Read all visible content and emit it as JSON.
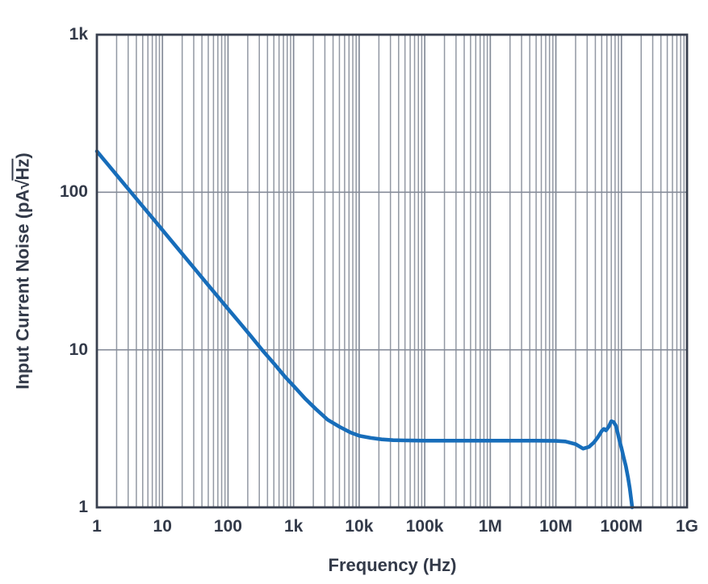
{
  "colors": {
    "curve": "#176dba",
    "grid_minor": "#9298a3",
    "grid_major": "#848b98",
    "frame": "#39404f",
    "text": "#333a49",
    "background": "#ffffff"
  },
  "axis_titles": {
    "x": "Frequency (Hz)",
    "y_prefix": "Input Current Noise (pA",
    "y_sqrt": "√",
    "y_radicand": "Hz",
    "y_suffix": ")"
  },
  "chart_data": {
    "type": "line",
    "title": "",
    "xlabel": "Frequency (Hz)",
    "ylabel": "Input Current Noise (pA√Hz)",
    "x_scale": "log",
    "y_scale": "log",
    "xlim": [
      1,
      1000000000
    ],
    "ylim": [
      1,
      1000
    ],
    "grid": "log minor vertical lines every decade; horizontal lines at decades only",
    "legend": "none",
    "x_ticks": [
      {
        "value": 1,
        "label": "1"
      },
      {
        "value": 10,
        "label": "10"
      },
      {
        "value": 100,
        "label": "100"
      },
      {
        "value": 1000,
        "label": "1k"
      },
      {
        "value": 10000,
        "label": "10k"
      },
      {
        "value": 100000,
        "label": "100k"
      },
      {
        "value": 1000000,
        "label": "1M"
      },
      {
        "value": 10000000,
        "label": "10M"
      },
      {
        "value": 100000000,
        "label": "100M"
      },
      {
        "value": 1000000000,
        "label": "1G"
      }
    ],
    "y_ticks": [
      {
        "value": 1,
        "label": "1"
      },
      {
        "value": 10,
        "label": "10"
      },
      {
        "value": 100,
        "label": "100"
      },
      {
        "value": 1000,
        "label": "1k"
      }
    ],
    "series": [
      {
        "name": "input-current-noise",
        "color": "#176dba",
        "points": [
          [
            1,
            182
          ],
          [
            1.5,
            148.6
          ],
          [
            2.2,
            122.7
          ],
          [
            3.3,
            100.2
          ],
          [
            5,
            81.4
          ],
          [
            7.5,
            66.5
          ],
          [
            10,
            57.6
          ],
          [
            15,
            47.0
          ],
          [
            22,
            38.8
          ],
          [
            33,
            31.7
          ],
          [
            50,
            25.7
          ],
          [
            75,
            21.0
          ],
          [
            100,
            18.2
          ],
          [
            150,
            14.9
          ],
          [
            220,
            12.3
          ],
          [
            330,
            10.0
          ],
          [
            500,
            8.2
          ],
          [
            750,
            6.7
          ],
          [
            1000,
            5.9
          ],
          [
            1500,
            4.9
          ],
          [
            2200,
            4.2
          ],
          [
            3300,
            3.6
          ],
          [
            5000,
            3.25
          ],
          [
            7500,
            2.98
          ],
          [
            10000,
            2.85
          ],
          [
            15000,
            2.76
          ],
          [
            22000,
            2.7
          ],
          [
            33000,
            2.67
          ],
          [
            50000,
            2.66
          ],
          [
            100000,
            2.65
          ],
          [
            220000,
            2.65
          ],
          [
            500000,
            2.65
          ],
          [
            1000000,
            2.65
          ],
          [
            2200000,
            2.65
          ],
          [
            5000000,
            2.65
          ],
          [
            10000000,
            2.64
          ],
          [
            14000000,
            2.62
          ],
          [
            20000000,
            2.52
          ],
          [
            26000000,
            2.36
          ],
          [
            32000000,
            2.42
          ],
          [
            38000000,
            2.58
          ],
          [
            44000000,
            2.8
          ],
          [
            50000000,
            3.05
          ],
          [
            54000000,
            3.15
          ],
          [
            58000000,
            3.08
          ],
          [
            64000000,
            3.25
          ],
          [
            70000000,
            3.52
          ],
          [
            76000000,
            3.48
          ],
          [
            82000000,
            3.3
          ],
          [
            88000000,
            2.95
          ],
          [
            94000000,
            2.62
          ],
          [
            100000000,
            2.38
          ],
          [
            108000000,
            2.08
          ],
          [
            117000000,
            1.82
          ],
          [
            126000000,
            1.55
          ],
          [
            134000000,
            1.32
          ],
          [
            141000000,
            1.12
          ],
          [
            146000000,
            1.0
          ]
        ]
      }
    ]
  }
}
